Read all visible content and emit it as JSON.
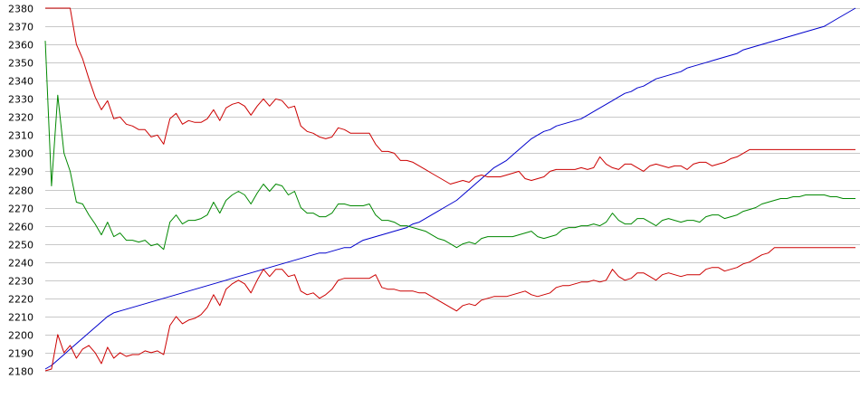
{
  "chart_data": {
    "type": "line",
    "title": "",
    "xlabel": "",
    "ylabel": "",
    "ylim": [
      2180,
      2380
    ],
    "yticks": [
      2180,
      2190,
      2200,
      2210,
      2220,
      2230,
      2240,
      2250,
      2260,
      2270,
      2280,
      2290,
      2300,
      2310,
      2320,
      2330,
      2340,
      2350,
      2360,
      2370,
      2380
    ],
    "grid": true,
    "legend": "none",
    "x_count": 131,
    "series": [
      {
        "color": "#0000cc",
        "values": [
          2181,
          2183,
          2186,
          2189,
          2192,
          2195,
          2198,
          2201,
          2204,
          2207,
          2210,
          2212,
          2213,
          2214,
          2215,
          2216,
          2217,
          2218,
          2219,
          2220,
          2221,
          2222,
          2223,
          2224,
          2225,
          2226,
          2227,
          2228,
          2229,
          2230,
          2231,
          2232,
          2233,
          2234,
          2235,
          2236,
          2237,
          2238,
          2239,
          2240,
          2241,
          2242,
          2243,
          2244,
          2245,
          2245,
          2246,
          2247,
          2248,
          2248,
          2250,
          2252,
          2253,
          2254,
          2255,
          2256,
          2257,
          2258,
          2259,
          2261,
          2262,
          2264,
          2266,
          2268,
          2270,
          2272,
          2274,
          2277,
          2280,
          2283,
          2286,
          2289,
          2292,
          2294,
          2296,
          2299,
          2302,
          2305,
          2308,
          2310,
          2312,
          2313,
          2315,
          2316,
          2317,
          2318,
          2319,
          2321,
          2323,
          2325,
          2327,
          2329,
          2331,
          2333,
          2334,
          2336,
          2337,
          2339,
          2341,
          2342,
          2343,
          2344,
          2345,
          2347,
          2348,
          2349,
          2350,
          2351,
          2352,
          2353,
          2354,
          2355,
          2357,
          2358,
          2359,
          2360,
          2361,
          2362,
          2363,
          2364,
          2365,
          2366,
          2367,
          2368,
          2369,
          2370,
          2372,
          2374,
          2376,
          2378,
          2380
        ]
      },
      {
        "color": "#008800",
        "values": [
          2362,
          2282,
          2332,
          2300,
          2290,
          2273,
          2272,
          2266,
          2261,
          2255,
          2262,
          2254,
          2256,
          2252,
          2252,
          2251,
          2252,
          2249,
          2250,
          2247,
          2262,
          2266,
          2261,
          2263,
          2263,
          2264,
          2266,
          2273,
          2267,
          2274,
          2277,
          2279,
          2277,
          2272,
          2278,
          2283,
          2279,
          2283,
          2282,
          2277,
          2279,
          2270,
          2267,
          2267,
          2265,
          2265,
          2267,
          2272,
          2272,
          2271,
          2271,
          2271,
          2272,
          2266,
          2263,
          2263,
          2262,
          2260,
          2260,
          2259,
          2258,
          2257,
          2255,
          2253,
          2252,
          2250,
          2248,
          2250,
          2251,
          2250,
          2253,
          2254,
          2254,
          2254,
          2254,
          2254,
          2255,
          2256,
          2257,
          2254,
          2253,
          2254,
          2255,
          2258,
          2259,
          2259,
          2260,
          2260,
          2261,
          2260,
          2262,
          2267,
          2263,
          2261,
          2261,
          2264,
          2264,
          2262,
          2260,
          2263,
          2264,
          2263,
          2262,
          2263,
          2263,
          2262,
          2265,
          2266,
          2266,
          2264,
          2265,
          2266,
          2268,
          2269,
          2270,
          2272,
          2273,
          2274,
          2275,
          2275,
          2276,
          2276,
          2277,
          2277,
          2277,
          2277,
          2276,
          2276,
          2275,
          2275,
          2275
        ]
      },
      {
        "color": "#cc0000",
        "values": [
          2380,
          2380,
          2380,
          2380,
          2380,
          2360,
          2352,
          2341,
          2331,
          2324,
          2329,
          2319,
          2320,
          2316,
          2315,
          2313,
          2313,
          2309,
          2310,
          2305,
          2319,
          2322,
          2316,
          2318,
          2317,
          2317,
          2319,
          2324,
          2318,
          2325,
          2327,
          2328,
          2326,
          2321,
          2326,
          2330,
          2326,
          2330,
          2329,
          2325,
          2326,
          2315,
          2312,
          2311,
          2309,
          2308,
          2309,
          2314,
          2313,
          2311,
          2311,
          2311,
          2311,
          2305,
          2301,
          2301,
          2300,
          2296,
          2296,
          2295,
          2293,
          2291,
          2289,
          2287,
          2285,
          2283,
          2284,
          2285,
          2284,
          2287,
          2288,
          2287,
          2287,
          2287,
          2288,
          2289,
          2290,
          2286,
          2285,
          2286,
          2287,
          2290,
          2291,
          2291,
          2291,
          2291,
          2292,
          2291,
          2292,
          2298,
          2294,
          2292,
          2291,
          2294,
          2294,
          2292,
          2290,
          2293,
          2294,
          2293,
          2292,
          2293,
          2293,
          2291,
          2294,
          2295,
          2295,
          2293,
          2294,
          2295,
          2297,
          2298,
          2300,
          2302,
          2302,
          2302,
          2302,
          2302,
          2302,
          2302,
          2302,
          2302,
          2302,
          2302,
          2302,
          2302,
          2302,
          2302,
          2302,
          2302,
          2302
        ]
      },
      {
        "color": "#cc0000",
        "values": [
          2180,
          2181,
          2200,
          2190,
          2194,
          2187,
          2192,
          2194,
          2190,
          2184,
          2193,
          2187,
          2190,
          2188,
          2189,
          2189,
          2191,
          2190,
          2191,
          2189,
          2205,
          2210,
          2206,
          2208,
          2209,
          2211,
          2215,
          2222,
          2216,
          2225,
          2228,
          2230,
          2228,
          2223,
          2230,
          2236,
          2232,
          2236,
          2236,
          2232,
          2233,
          2224,
          2222,
          2223,
          2220,
          2222,
          2225,
          2230,
          2231,
          2231,
          2231,
          2231,
          2231,
          2233,
          2226,
          2225,
          2225,
          2224,
          2224,
          2224,
          2223,
          2223,
          2221,
          2219,
          2217,
          2215,
          2213,
          2216,
          2217,
          2216,
          2219,
          2220,
          2221,
          2221,
          2221,
          2222,
          2223,
          2224,
          2222,
          2221,
          2222,
          2223,
          2226,
          2227,
          2227,
          2228,
          2229,
          2229,
          2230,
          2229,
          2230,
          2236,
          2232,
          2230,
          2231,
          2234,
          2234,
          2232,
          2230,
          2233,
          2234,
          2233,
          2232,
          2233,
          2233,
          2233,
          2236,
          2237,
          2237,
          2235,
          2236,
          2237,
          2239,
          2240,
          2242,
          2244,
          2245,
          2248,
          2248,
          2248,
          2248,
          2248,
          2248,
          2248,
          2248,
          2248,
          2248,
          2248,
          2248,
          2248,
          2248
        ]
      }
    ]
  }
}
